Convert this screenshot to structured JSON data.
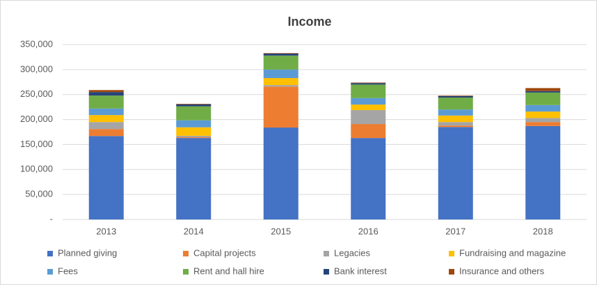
{
  "chart_data": {
    "type": "stacked-bar",
    "title": "Income",
    "categories": [
      "2013",
      "2014",
      "2015",
      "2016",
      "2017",
      "2018"
    ],
    "series": [
      {
        "name": "Planned giving",
        "color": "#4472c4",
        "values": [
          167000,
          163000,
          184000,
          163000,
          185000,
          187000
        ]
      },
      {
        "name": "Capital projects",
        "color": "#ed7d31",
        "values": [
          14000,
          1500,
          82000,
          28000,
          3000,
          8000
        ]
      },
      {
        "name": "Legacies",
        "color": "#a5a5a5",
        "values": [
          14000,
          3000,
          3000,
          28000,
          7000,
          8000
        ]
      },
      {
        "name": "Fundraising and magazine",
        "color": "#ffc000",
        "values": [
          14000,
          17000,
          14000,
          11000,
          13000,
          13000
        ]
      },
      {
        "name": "Fees",
        "color": "#5b9bd5",
        "values": [
          13000,
          14000,
          17000,
          13000,
          12000,
          13000
        ]
      },
      {
        "name": "Rent and hall hire",
        "color": "#70ad47",
        "values": [
          26000,
          28000,
          28000,
          27000,
          24000,
          25000
        ]
      },
      {
        "name": "Bank interest",
        "color": "#264478",
        "values": [
          7000,
          4000,
          4000,
          3000,
          3000,
          3000
        ]
      },
      {
        "name": "Insurance and others",
        "color": "#9e480e",
        "values": [
          4000,
          1000,
          1000,
          1000,
          1000,
          6000
        ]
      }
    ],
    "ylim": [
      0,
      350000
    ],
    "yticks": [
      {
        "value": 0,
        "label": "-"
      },
      {
        "value": 50000,
        "label": "50,000"
      },
      {
        "value": 100000,
        "label": "100,000"
      },
      {
        "value": 150000,
        "label": "150,000"
      },
      {
        "value": 200000,
        "label": "200,000"
      },
      {
        "value": 250000,
        "label": "250,000"
      },
      {
        "value": 300000,
        "label": "300,000"
      },
      {
        "value": 350000,
        "label": "350,000"
      }
    ],
    "grid": true,
    "legend": "bottom"
  }
}
